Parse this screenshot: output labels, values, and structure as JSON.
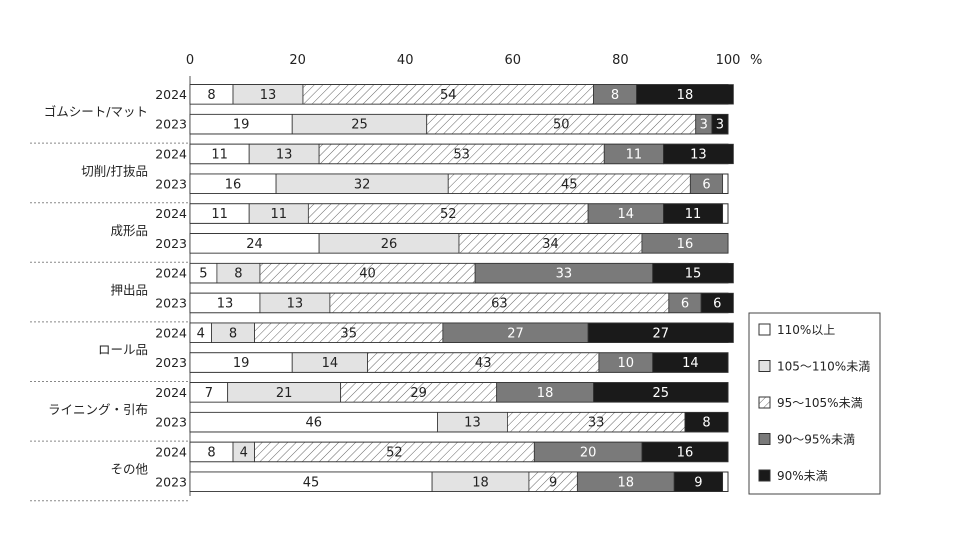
{
  "chart_data": {
    "type": "bar",
    "orientation": "horizontal",
    "stacked": true,
    "percent_unit": "%",
    "x_ticks": [
      "0",
      "20",
      "40",
      "60",
      "80",
      "100"
    ],
    "xlim": [
      0,
      100
    ],
    "groups": [
      {
        "category": "ゴムシート/マット",
        "rows": [
          {
            "year": "2024",
            "values": [
              8,
              13,
              54,
              8,
              18
            ]
          },
          {
            "year": "2023",
            "values": [
              19,
              25,
              50,
              3,
              3
            ]
          }
        ]
      },
      {
        "category": "切削/打抜品",
        "rows": [
          {
            "year": "2024",
            "values": [
              11,
              13,
              53,
              11,
              13
            ]
          },
          {
            "year": "2023",
            "values": [
              16,
              32,
              45,
              6,
              0
            ]
          }
        ]
      },
      {
        "category": "成形品",
        "rows": [
          {
            "year": "2024",
            "values": [
              11,
              11,
              52,
              14,
              11
            ]
          },
          {
            "year": "2023",
            "values": [
              24,
              26,
              34,
              16,
              0
            ]
          }
        ]
      },
      {
        "category": "押出品",
        "rows": [
          {
            "year": "2024",
            "values": [
              5,
              8,
              40,
              33,
              15
            ]
          },
          {
            "year": "2023",
            "values": [
              13,
              13,
              63,
              6,
              6
            ]
          }
        ]
      },
      {
        "category": "ロール品",
        "rows": [
          {
            "year": "2024",
            "values": [
              4,
              8,
              35,
              27,
              27
            ]
          },
          {
            "year": "2023",
            "values": [
              19,
              14,
              43,
              10,
              14
            ]
          }
        ]
      },
      {
        "category": "ライニング・引布",
        "rows": [
          {
            "year": "2024",
            "values": [
              7,
              21,
              29,
              18,
              25
            ]
          },
          {
            "year": "2023",
            "values": [
              46,
              13,
              33,
              0,
              8
            ]
          }
        ]
      },
      {
        "category": "その他",
        "rows": [
          {
            "year": "2024",
            "values": [
              8,
              4,
              52,
              20,
              16
            ]
          },
          {
            "year": "2023",
            "values": [
              45,
              18,
              9,
              18,
              9
            ]
          }
        ]
      }
    ],
    "series": [
      {
        "name": "110%以上",
        "color": "#ffffff",
        "pattern": "solid"
      },
      {
        "name": "105～110%未満",
        "color": "#e3e3e3",
        "pattern": "solid"
      },
      {
        "name": "95～105%未満",
        "color": "#ffffff",
        "pattern": "hatch"
      },
      {
        "name": "90～95%未満",
        "color": "#7a7a7a",
        "pattern": "solid"
      },
      {
        "name": "90%未満",
        "color": "#1a1a1a",
        "pattern": "solid"
      }
    ],
    "legend_position": "right"
  }
}
